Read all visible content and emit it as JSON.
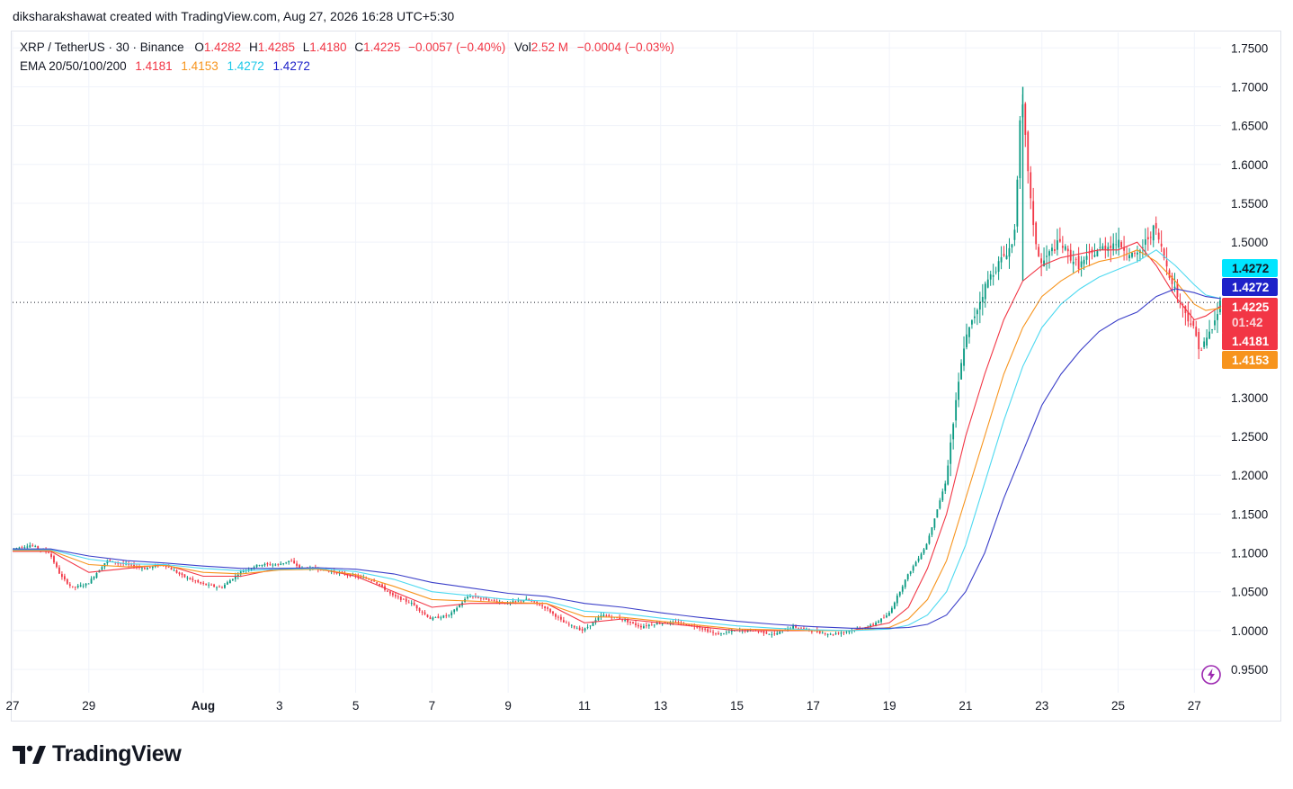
{
  "header": {
    "attribution": "diksharakshawat created with TradingView.com, Aug 27, 2026 16:28 UTC+5:30"
  },
  "legend": {
    "symbol": "XRP / TetherUS · 30 · Binance",
    "o_label": "O",
    "o_value": "1.4282",
    "h_label": "H",
    "h_value": "1.4285",
    "l_label": "L",
    "l_value": "1.4180",
    "c_label": "C",
    "c_value": "1.4225",
    "change": "−0.0057 (−0.40%)",
    "vol_label": "Vol",
    "vol_value": "2.52 M",
    "vol_change": "−0.0004 (−0.03%)",
    "ema_label": "EMA 20/50/100/200",
    "ema20": "1.4181",
    "ema50": "1.4153",
    "ema100": "1.4272",
    "ema200": "1.4272"
  },
  "price_tags": {
    "ema100": "1.4272",
    "ema200": "1.4272",
    "last": "1.4225",
    "countdown": "01:42",
    "ema20": "1.4181",
    "ema50": "1.4153"
  },
  "colors": {
    "up": "#089981",
    "down": "#f23645",
    "ema20": "#f23645",
    "ema50": "#f7941d",
    "ema100": "#4dd9f0",
    "ema200": "#3b3fc9",
    "tag_cyan": "#00e5ff",
    "tag_blue": "#1e22c9",
    "tag_red": "#f23645",
    "tag_orange": "#f7941d"
  },
  "brand": {
    "name": "TradingView",
    "icon": "tradingview-logo-icon"
  },
  "chart_data": {
    "type": "line",
    "title": "",
    "xlabel": "",
    "ylabel": "",
    "ylim": [
      0.92,
      1.77
    ],
    "y_ticks": [
      "1.7500",
      "1.7000",
      "1.6500",
      "1.6000",
      "1.5500",
      "1.5000",
      "1.3000",
      "1.2500",
      "1.2000",
      "1.1500",
      "1.1000",
      "1.0500",
      "1.0000",
      "0.9500"
    ],
    "y_tick_values": [
      1.75,
      1.7,
      1.65,
      1.6,
      1.55,
      1.5,
      1.3,
      1.25,
      1.2,
      1.15,
      1.1,
      1.05,
      1.0,
      0.95
    ],
    "x_ticks": [
      "27",
      "29",
      "Aug",
      "3",
      "5",
      "7",
      "9",
      "11",
      "13",
      "15",
      "17",
      "19",
      "21",
      "23",
      "25",
      "27"
    ],
    "x_tick_days": [
      -5,
      -3,
      0,
      2,
      4,
      6,
      8,
      10,
      12,
      14,
      16,
      18,
      20,
      22,
      24,
      26
    ],
    "x_range_days": [
      -5,
      26.7
    ],
    "last_price": 1.4225,
    "grid": true,
    "series": [
      {
        "key": "price",
        "x": [
          -5,
          -4.5,
          -4,
          -3.7,
          -3.4,
          -3,
          -2.5,
          -2,
          -1.5,
          -1,
          -0.5,
          0,
          0.5,
          1,
          1.5,
          2,
          2.3,
          2.6,
          3,
          3.5,
          4,
          4.5,
          5,
          5.5,
          6,
          6.5,
          7,
          7.5,
          8,
          8.5,
          9,
          9.5,
          10,
          10.5,
          11,
          11.5,
          12,
          12.5,
          13,
          13.5,
          14,
          14.5,
          15,
          15.5,
          16,
          16.5,
          17,
          17.5,
          18,
          18.5,
          19,
          19.5,
          19.8,
          20,
          20.3,
          20.6,
          21,
          21.3,
          21.5,
          21.8,
          22,
          22.3,
          22.5,
          22.8,
          23,
          23.5,
          24,
          24.5,
          25,
          25.3,
          25.6,
          26,
          26.2,
          26.4,
          26.6,
          26.7
        ],
        "values": [
          1.105,
          1.11,
          1.1,
          1.07,
          1.055,
          1.06,
          1.09,
          1.085,
          1.08,
          1.085,
          1.07,
          1.06,
          1.055,
          1.075,
          1.085,
          1.085,
          1.09,
          1.08,
          1.08,
          1.075,
          1.07,
          1.065,
          1.045,
          1.035,
          1.015,
          1.02,
          1.045,
          1.04,
          1.035,
          1.04,
          1.03,
          1.01,
          1.0,
          1.02,
          1.015,
          1.005,
          1.01,
          1.01,
          1.005,
          0.995,
          1.0,
          1.0,
          0.995,
          1.005,
          1.0,
          0.995,
          1.0,
          1.005,
          1.02,
          1.07,
          1.11,
          1.19,
          1.3,
          1.37,
          1.41,
          1.45,
          1.48,
          1.5,
          1.69,
          1.52,
          1.47,
          1.49,
          1.5,
          1.48,
          1.47,
          1.49,
          1.5,
          1.48,
          1.52,
          1.47,
          1.43,
          1.39,
          1.36,
          1.38,
          1.4,
          1.4225
        ]
      },
      {
        "key": "ema20",
        "x": [
          -5,
          -4,
          -3,
          -2,
          -1,
          0,
          1,
          2,
          3,
          4,
          5,
          6,
          7,
          8,
          9,
          10,
          11,
          12,
          13,
          14,
          15,
          16,
          17,
          18,
          18.5,
          19,
          19.5,
          20,
          20.5,
          21,
          21.5,
          22,
          22.5,
          23,
          23.5,
          24,
          24.5,
          25,
          25.5,
          26,
          26.3,
          26.7
        ],
        "values": [
          1.102,
          1.102,
          1.075,
          1.08,
          1.085,
          1.07,
          1.07,
          1.08,
          1.08,
          1.07,
          1.05,
          1.03,
          1.035,
          1.035,
          1.035,
          1.01,
          1.015,
          1.01,
          1.005,
          1.0,
          1.0,
          1.0,
          1.0,
          1.01,
          1.03,
          1.08,
          1.15,
          1.25,
          1.33,
          1.4,
          1.45,
          1.47,
          1.48,
          1.485,
          1.49,
          1.49,
          1.5,
          1.47,
          1.43,
          1.4,
          1.405,
          1.4181
        ]
      },
      {
        "key": "ema50",
        "x": [
          -5,
          -4,
          -3,
          -2,
          -1,
          0,
          1,
          2,
          3,
          4,
          5,
          6,
          7,
          8,
          9,
          10,
          11,
          12,
          13,
          14,
          15,
          16,
          17,
          18,
          18.5,
          19,
          19.5,
          20,
          20.5,
          21,
          21.5,
          22,
          22.5,
          23,
          23.5,
          24,
          24.5,
          25,
          25.5,
          26,
          26.3,
          26.7
        ],
        "values": [
          1.103,
          1.103,
          1.085,
          1.082,
          1.084,
          1.075,
          1.073,
          1.078,
          1.079,
          1.072,
          1.057,
          1.04,
          1.038,
          1.036,
          1.035,
          1.018,
          1.017,
          1.012,
          1.007,
          1.002,
          1.001,
          1.0,
          1.0,
          1.004,
          1.015,
          1.04,
          1.09,
          1.17,
          1.25,
          1.33,
          1.39,
          1.43,
          1.45,
          1.465,
          1.475,
          1.48,
          1.49,
          1.475,
          1.45,
          1.42,
          1.412,
          1.4153
        ]
      },
      {
        "key": "ema100",
        "x": [
          -5,
          -4,
          -3,
          -2,
          -1,
          0,
          1,
          2,
          3,
          4,
          5,
          6,
          7,
          8,
          9,
          10,
          11,
          12,
          13,
          14,
          15,
          16,
          17,
          18,
          18.5,
          19,
          19.5,
          20,
          20.5,
          21,
          21.5,
          22,
          22.5,
          23,
          23.5,
          24,
          24.5,
          25,
          25.5,
          26,
          26.3,
          26.7
        ],
        "values": [
          1.104,
          1.104,
          1.092,
          1.086,
          1.085,
          1.08,
          1.077,
          1.079,
          1.08,
          1.076,
          1.066,
          1.05,
          1.045,
          1.04,
          1.038,
          1.025,
          1.022,
          1.016,
          1.011,
          1.006,
          1.003,
          1.001,
          1.0,
          1.002,
          1.007,
          1.02,
          1.05,
          1.11,
          1.19,
          1.27,
          1.34,
          1.39,
          1.42,
          1.44,
          1.455,
          1.465,
          1.475,
          1.49,
          1.47,
          1.445,
          1.432,
          1.4272
        ]
      },
      {
        "key": "ema200",
        "x": [
          -5,
          -4,
          -3,
          -2,
          -1,
          0,
          1,
          2,
          3,
          4,
          5,
          6,
          7,
          8,
          9,
          10,
          11,
          12,
          13,
          14,
          15,
          16,
          17,
          18,
          18.5,
          19,
          19.5,
          20,
          20.5,
          21,
          21.5,
          22,
          22.5,
          23,
          23.5,
          24,
          24.5,
          25,
          25.5,
          26,
          26.3,
          26.7
        ],
        "values": [
          1.105,
          1.105,
          1.096,
          1.09,
          1.087,
          1.083,
          1.08,
          1.08,
          1.081,
          1.079,
          1.073,
          1.062,
          1.055,
          1.048,
          1.044,
          1.035,
          1.03,
          1.023,
          1.017,
          1.012,
          1.008,
          1.005,
          1.003,
          1.003,
          1.004,
          1.008,
          1.02,
          1.05,
          1.1,
          1.17,
          1.23,
          1.29,
          1.33,
          1.36,
          1.385,
          1.4,
          1.41,
          1.43,
          1.44,
          1.435,
          1.43,
          1.4272
        ]
      }
    ]
  }
}
